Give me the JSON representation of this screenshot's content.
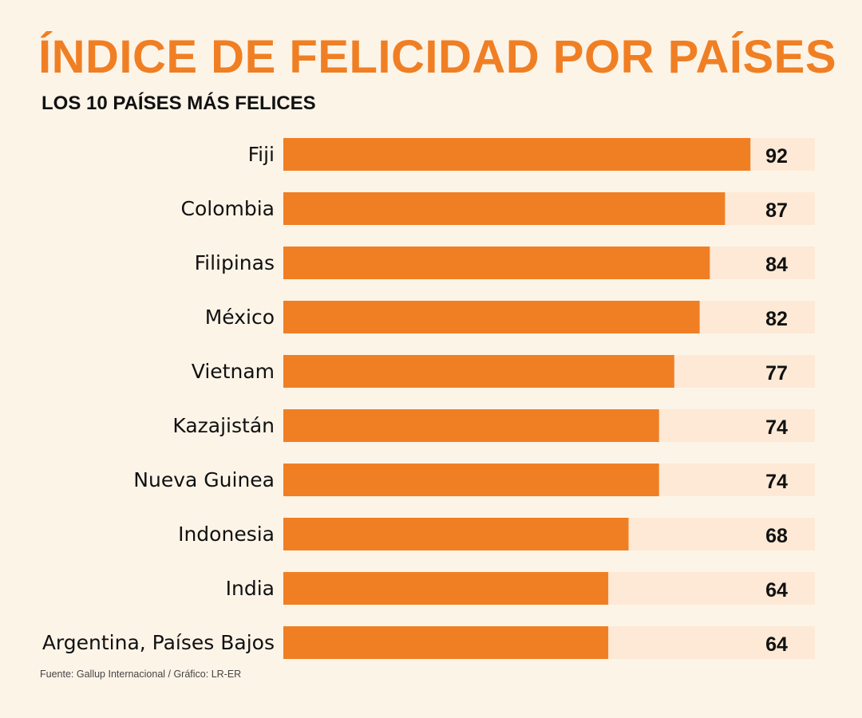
{
  "title": "ÍNDICE DE FELICIDAD POR PAÍSES",
  "subtitle": "LOS 10 PAÍSES MÁS FELICES",
  "source": "Fuente: Gallup Internacional / Gráfico: LR-ER",
  "colors": {
    "bar": "#f07f24",
    "track": "#fde9d5",
    "background": "#fdf4e8"
  },
  "chart_data": {
    "type": "bar",
    "orientation": "horizontal",
    "title": "ÍNDICE DE FELICIDAD POR PAÍSES",
    "subtitle": "LOS 10 PAÍSES MÁS FELICES",
    "categories": [
      "Fiji",
      "Colombia",
      "Filipinas",
      "México",
      "Vietnam",
      "Kazajistán",
      "Nueva Guinea",
      "Indonesia",
      "India",
      "Argentina, Países Bajos"
    ],
    "values": [
      92,
      87,
      84,
      82,
      77,
      74,
      74,
      68,
      64,
      64
    ],
    "xlim": [
      0,
      104.7
    ],
    "grid": false,
    "legend": "none"
  }
}
